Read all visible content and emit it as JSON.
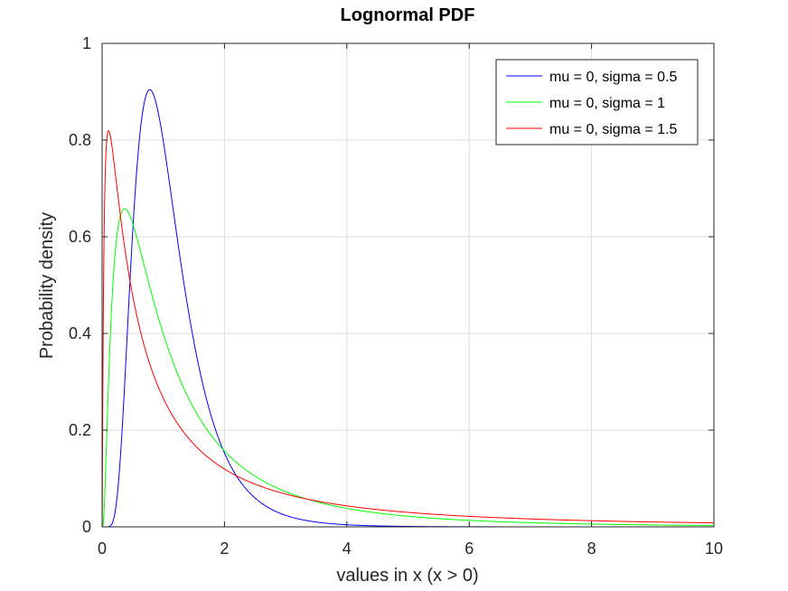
{
  "chart_data": {
    "type": "line",
    "title": "Lognormal PDF",
    "xlabel": "values in x (x > 0)",
    "ylabel": "Probability density",
    "xlim": [
      0,
      10
    ],
    "ylim": [
      0,
      1
    ],
    "xticks": [
      0,
      2,
      4,
      6,
      8,
      10
    ],
    "yticks": [
      0,
      0.2,
      0.4,
      0.6,
      0.8,
      1
    ],
    "xtick_labels": [
      "0",
      "2",
      "4",
      "6",
      "8",
      "10"
    ],
    "ytick_labels": [
      "0",
      "0.2",
      "0.4",
      "0.6",
      "0.8",
      "1"
    ],
    "grid": true,
    "legend_position": "top-right",
    "series": [
      {
        "name": "mu = 0, sigma = 0.5",
        "mu": 0,
        "sigma": 0.5,
        "color": "#0000ff"
      },
      {
        "name": "mu = 0, sigma = 1",
        "mu": 0,
        "sigma": 1,
        "color": "#00ff00"
      },
      {
        "name": "mu = 0, sigma = 1.5",
        "mu": 0,
        "sigma": 1.5,
        "color": "#ff0000"
      }
    ]
  }
}
